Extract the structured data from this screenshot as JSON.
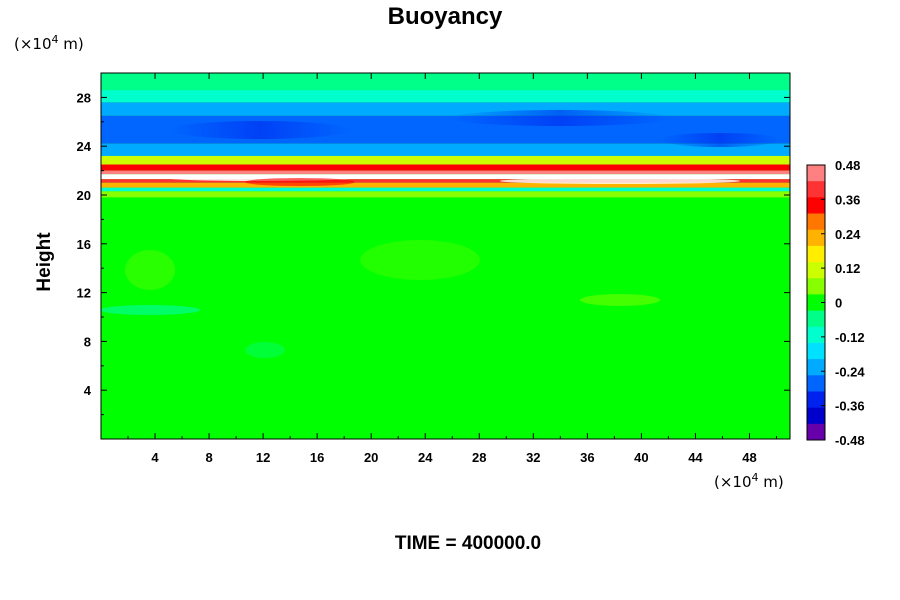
{
  "chart_data": {
    "type": "heatmap",
    "title": "Buoyancy",
    "xlabel": "",
    "ylabel": "Height",
    "x_unit_prefix": "(×10",
    "x_unit_exp": "4",
    "x_unit_suffix": " m)",
    "y_unit_prefix": "(×10",
    "y_unit_exp": "4",
    "y_unit_suffix": " m)",
    "xlim": [
      0,
      51
    ],
    "ylim": [
      0,
      30
    ],
    "x_ticks": [
      4,
      8,
      12,
      16,
      20,
      24,
      28,
      32,
      36,
      40,
      44,
      48
    ],
    "y_ticks": [
      4,
      8,
      12,
      16,
      20,
      24,
      28
    ],
    "colorbar": {
      "range": [
        -0.48,
        0.48
      ],
      "tick_values": [
        0.48,
        0.36,
        0.24,
        0.12,
        0,
        -0.12,
        -0.24,
        -0.36,
        -0.48
      ],
      "tick_labels": [
        "0.48",
        "0.36",
        "0.24",
        "0.12",
        "0",
        "-0.12",
        "-0.24",
        "-0.36",
        "-0.48"
      ],
      "colors": [
        "#ff8080",
        "#ff3333",
        "#ff0000",
        "#ff7700",
        "#ffb300",
        "#ffee00",
        "#ccff00",
        "#88ff00",
        "#00ff00",
        "#00ff88",
        "#00ffcc",
        "#00e0ff",
        "#00aaff",
        "#0066ff",
        "#0022ee",
        "#0000cc",
        "#6600aa"
      ]
    },
    "bands": [
      {
        "from": 28.6,
        "to": 30.0,
        "value": -0.06
      },
      {
        "from": 27.6,
        "to": 28.6,
        "value": -0.14
      },
      {
        "from": 26.5,
        "to": 27.6,
        "value": -0.22
      },
      {
        "from": 24.2,
        "to": 26.5,
        "value": -0.3
      },
      {
        "from": 23.2,
        "to": 24.2,
        "value": -0.2
      },
      {
        "from": 22.5,
        "to": 23.2,
        "value": 0.1
      },
      {
        "from": 22.0,
        "to": 22.5,
        "value": 0.34
      },
      {
        "from": 21.7,
        "to": 22.0,
        "value": 0.44
      },
      {
        "from": 21.3,
        "to": 21.7,
        "value": 0.62
      },
      {
        "from": 21.0,
        "to": 21.3,
        "value": 0.42
      },
      {
        "from": 20.6,
        "to": 21.0,
        "value": 0.22
      },
      {
        "from": 20.3,
        "to": 20.6,
        "value": -0.1
      },
      {
        "from": 19.8,
        "to": 20.3,
        "value": 0.08
      },
      {
        "from": 0.0,
        "to": 19.8,
        "value": 0.02
      }
    ],
    "time_label": "TIME = 400000.0"
  }
}
